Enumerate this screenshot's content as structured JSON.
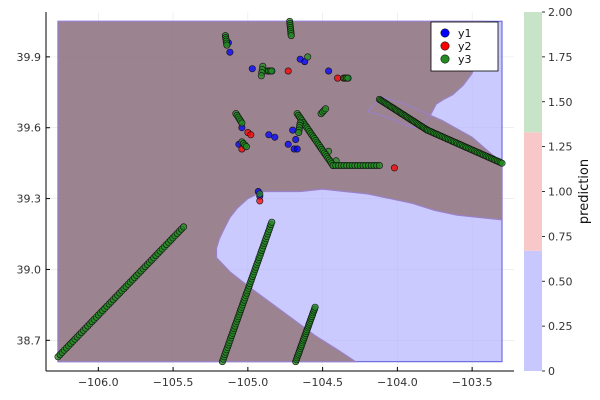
{
  "chart_data": {
    "type": "scatter",
    "title": "",
    "xlabel": "",
    "ylabel": "",
    "xlim": [
      -106.35,
      -103.22
    ],
    "ylim": [
      38.57,
      40.09
    ],
    "x_ticks": [
      -106.0,
      -105.5,
      -105.0,
      -104.5,
      -104.0,
      -103.5
    ],
    "x_tick_labels": [
      "−106.0",
      "−105.5",
      "−105.0",
      "−104.5",
      "−104.0",
      "−103.5"
    ],
    "y_ticks": [
      38.7,
      39.0,
      39.3,
      39.6,
      39.9
    ],
    "y_tick_labels": [
      "38.7",
      "39.0",
      "39.3",
      "39.6",
      "39.9"
    ],
    "grid": true,
    "legend_position": "top-right",
    "series": [
      {
        "name": "y1",
        "color": "#0000ff",
        "points": [
          [
            -105.13,
            39.96
          ],
          [
            -105.12,
            39.92
          ],
          [
            -104.97,
            39.85
          ],
          [
            -104.84,
            39.84
          ],
          [
            -104.65,
            39.89
          ],
          [
            -104.62,
            39.88
          ],
          [
            -104.46,
            39.84
          ],
          [
            -104.35,
            39.81
          ],
          [
            -104.33,
            39.81
          ],
          [
            -105.04,
            39.6
          ],
          [
            -104.86,
            39.57
          ],
          [
            -104.82,
            39.56
          ],
          [
            -104.73,
            39.53
          ],
          [
            -104.7,
            39.59
          ],
          [
            -104.68,
            39.55
          ],
          [
            -104.69,
            39.51
          ],
          [
            -104.67,
            39.51
          ],
          [
            -104.93,
            39.33
          ],
          [
            -104.92,
            39.31
          ],
          [
            -105.06,
            39.53
          ]
        ]
      },
      {
        "name": "y2",
        "color": "#ff0000",
        "points": [
          [
            -104.73,
            39.84
          ],
          [
            -104.4,
            39.81
          ],
          [
            -104.36,
            39.81
          ],
          [
            -105.0,
            39.58
          ],
          [
            -104.98,
            39.57
          ],
          [
            -105.04,
            39.51
          ],
          [
            -104.92,
            39.29
          ],
          [
            -104.02,
            39.43
          ]
        ]
      },
      {
        "name": "y3",
        "color": "#228b22",
        "segments": [
          {
            "from": [
              -106.27,
              38.63
            ],
            "to": [
              -105.43,
              39.18
            ],
            "n": 60
          },
          {
            "from": [
              -105.17,
              38.61
            ],
            "to": [
              -104.84,
              39.2
            ],
            "n": 60
          },
          {
            "from": [
              -104.68,
              38.61
            ],
            "to": [
              -104.55,
              38.84
            ],
            "n": 30
          },
          {
            "from": [
              -104.67,
              39.66
            ],
            "to": [
              -104.43,
              39.44
            ],
            "n": 30
          },
          {
            "from": [
              -104.43,
              39.44
            ],
            "to": [
              -104.12,
              39.44
            ],
            "n": 18
          },
          {
            "from": [
              -104.12,
              39.72
            ],
            "to": [
              -103.8,
              39.59
            ],
            "n": 40
          },
          {
            "from": [
              -103.8,
              39.59
            ],
            "to": [
              -103.3,
              39.45
            ],
            "n": 50
          },
          {
            "from": [
              -104.72,
              40.05
            ],
            "to": [
              -104.71,
              39.99
            ],
            "n": 8
          },
          {
            "from": [
              -105.15,
              39.99
            ],
            "to": [
              -105.14,
              39.95
            ],
            "n": 6
          },
          {
            "from": [
              -105.08,
              39.66
            ],
            "to": [
              -105.04,
              39.62
            ],
            "n": 6
          },
          {
            "from": [
              -104.65,
              39.62
            ],
            "to": [
              -104.66,
              39.58
            ],
            "n": 5
          },
          {
            "from": [
              -104.51,
              39.66
            ],
            "to": [
              -104.48,
              39.68
            ],
            "n": 4
          },
          {
            "from": [
              -104.87,
              39.84
            ],
            "to": [
              -104.84,
              39.84
            ],
            "n": 4
          },
          {
            "from": [
              -104.9,
              39.86
            ],
            "to": [
              -104.91,
              39.82
            ],
            "n": 4
          },
          {
            "from": [
              -104.35,
              39.81
            ],
            "to": [
              -104.33,
              39.81
            ],
            "n": 3
          },
          {
            "from": [
              -105.04,
              39.54
            ],
            "to": [
              -105.01,
              39.52
            ],
            "n": 4
          }
        ],
        "points": [
          [
            -104.92,
            39.32
          ],
          [
            -104.6,
            39.9
          ],
          [
            -104.41,
            39.46
          ],
          [
            -104.46,
            39.5
          ]
        ]
      }
    ],
    "regions": [
      {
        "label": "0",
        "color": "#b4b4ff",
        "polygon": [
          [
            -106.27,
            40.05
          ],
          [
            -103.3,
            40.05
          ],
          [
            -103.3,
            38.61
          ],
          [
            -106.27,
            38.61
          ]
        ]
      },
      {
        "label": "2",
        "color": "#8c6b6b",
        "polygon": [
          [
            -106.27,
            40.05
          ],
          [
            -103.42,
            40.05
          ],
          [
            -103.43,
            40.0
          ],
          [
            -103.46,
            39.91
          ],
          [
            -103.5,
            39.83
          ],
          [
            -103.56,
            39.78
          ],
          [
            -103.63,
            39.74
          ],
          [
            -103.69,
            39.72
          ],
          [
            -103.74,
            39.7
          ],
          [
            -103.79,
            39.64
          ],
          [
            -103.84,
            39.61
          ],
          [
            -103.9,
            39.6
          ],
          [
            -104.05,
            39.64
          ],
          [
            -104.2,
            39.67
          ],
          [
            -104.1,
            39.73
          ],
          [
            -103.95,
            39.7
          ],
          [
            -103.7,
            39.63
          ],
          [
            -103.5,
            39.56
          ],
          [
            -103.3,
            39.45
          ],
          [
            -103.3,
            39.21
          ],
          [
            -103.45,
            39.22
          ],
          [
            -103.6,
            39.23
          ],
          [
            -103.75,
            39.25
          ],
          [
            -103.9,
            39.28
          ],
          [
            -104.05,
            39.3
          ],
          [
            -104.2,
            39.32
          ],
          [
            -104.35,
            39.33
          ],
          [
            -104.5,
            39.34
          ],
          [
            -104.65,
            39.33
          ],
          [
            -104.8,
            39.33
          ],
          [
            -104.9,
            39.33
          ],
          [
            -105.0,
            39.3
          ],
          [
            -105.07,
            39.26
          ],
          [
            -105.12,
            39.22
          ],
          [
            -105.16,
            39.17
          ],
          [
            -105.19,
            39.13
          ],
          [
            -105.21,
            39.09
          ],
          [
            -105.21,
            39.05
          ],
          [
            -105.12,
            38.99
          ],
          [
            -105.0,
            38.93
          ],
          [
            -104.85,
            38.86
          ],
          [
            -104.7,
            38.79
          ],
          [
            -104.55,
            38.72
          ],
          [
            -104.4,
            38.66
          ],
          [
            -104.28,
            38.61
          ],
          [
            -106.27,
            38.61
          ]
        ]
      }
    ],
    "colorbar": {
      "label": "prediction",
      "range": [
        0,
        2
      ],
      "ticks": [
        0,
        0.25,
        0.5,
        0.75,
        1.0,
        1.25,
        1.5,
        1.75,
        2.0
      ],
      "tick_labels": [
        "0",
        "0.25",
        "0.50",
        "0.75",
        "1.00",
        "1.25",
        "1.50",
        "1.75",
        "2.00"
      ],
      "bands": [
        {
          "from": 0,
          "to": 0.67,
          "color": "#c8c8ff"
        },
        {
          "from": 0.67,
          "to": 1.33,
          "color": "#f8c8c8"
        },
        {
          "from": 1.33,
          "to": 2.0,
          "color": "#c8e4c8"
        }
      ]
    }
  }
}
